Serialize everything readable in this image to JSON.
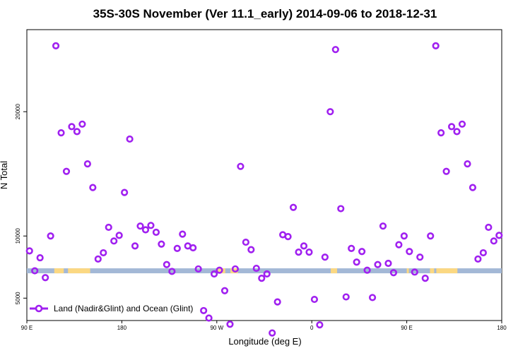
{
  "chart_data": {
    "type": "scatter",
    "title": "35S-30S November (Ver 11.1_early)   2014-09-06 to 2018-12-31",
    "xlabel": "Longitude (deg E)",
    "ylabel": "N Total",
    "xlim": [
      90,
      540
    ],
    "ylim": [
      3200,
      26600
    ],
    "x_ticks": [
      {
        "value": 90,
        "label": "90 E"
      },
      {
        "value": 180,
        "label": "180"
      },
      {
        "value": 270,
        "label": "90 W"
      },
      {
        "value": 360,
        "label": "0"
      },
      {
        "value": 450,
        "label": "90 E"
      },
      {
        "value": 540,
        "label": "180"
      }
    ],
    "y_ticks": [
      {
        "value": 5000,
        "label": "5000"
      },
      {
        "value": 10000,
        "label": "10000"
      },
      {
        "value": 20000,
        "label": "20000"
      }
    ],
    "map_strip": {
      "y_center": 7200,
      "y_half_height": 200,
      "ocean_color": "#a3b8d6",
      "land_color": "#fbd882",
      "land_ranges": [
        [
          116,
          120
        ],
        [
          118,
          125
        ],
        [
          129,
          150
        ],
        [
          270,
          278
        ],
        [
          283,
          290
        ],
        [
          378,
          384
        ],
        [
          450,
          452
        ],
        [
          472,
          476
        ],
        [
          478,
          498
        ]
      ]
    },
    "series": [
      {
        "name": "Land (Nadir&Glint) and Ocean (Glint)",
        "color": "#a020f0",
        "marker": "circle-open",
        "x": [
          92.5,
          97.5,
          102.5,
          107.5,
          112.5,
          117.5,
          122.5,
          127.5,
          132.5,
          137.5,
          142.5,
          147.5,
          152.5,
          157.5,
          162.5,
          167.5,
          172.5,
          177.5,
          182.5,
          187.5,
          192.5,
          197.5,
          202.5,
          207.5,
          212.5,
          217.5,
          222.5,
          227.5,
          232.5,
          237.5,
          242.5,
          247.5,
          252.5,
          257.5,
          262.5,
          267.5,
          272.5,
          277.5,
          282.5,
          287.5,
          292.5,
          297.5,
          302.5,
          307.5,
          312.5,
          317.5,
          322.5,
          327.5,
          332.5,
          337.5,
          342.5,
          347.5,
          352.5,
          357.5,
          362.5,
          367.5,
          372.5,
          377.5,
          382.5,
          387.5,
          392.5,
          397.5,
          402.5,
          407.5,
          412.5,
          417.5,
          422.5,
          427.5,
          432.5,
          437.5,
          442.5,
          447.5,
          452.5,
          457.5,
          462.5,
          467.5,
          472.5,
          477.5,
          482.5,
          487.5,
          492.5,
          497.5,
          502.5,
          507.5,
          512.5,
          517.5,
          522.5,
          527.5,
          532.5,
          537.5
        ],
        "y": [
          8800,
          7200,
          8250,
          6650,
          10000,
          25300,
          18300,
          15200,
          18800,
          18400,
          19000,
          15800,
          13900,
          8150,
          8650,
          10700,
          9600,
          10050,
          13500,
          17800,
          9200,
          10800,
          10500,
          10850,
          10300,
          9350,
          7700,
          7150,
          9000,
          10150,
          9200,
          9050,
          7350,
          4000,
          3400,
          6950,
          7250,
          5600,
          2900,
          7350,
          15600,
          9500,
          8900,
          7400,
          6600,
          6950,
          2200,
          4700,
          10100,
          9950,
          12300,
          8700,
          9200,
          8700,
          4900,
          2850,
          8300,
          20000,
          25000,
          12200,
          5100,
          9000,
          7900,
          8750,
          7250,
          5050,
          7700,
          10800,
          7800,
          7050,
          9300,
          10000,
          8750,
          7100,
          8300,
          6600,
          10000,
          25300,
          18300,
          15200,
          18800,
          18400,
          19000,
          15800,
          13900,
          8150,
          8650,
          10700,
          9600,
          10050
        ]
      }
    ],
    "legend": {
      "position": "bottom-left",
      "label": "Land (Nadir&Glint) and Ocean (Glint)"
    }
  }
}
